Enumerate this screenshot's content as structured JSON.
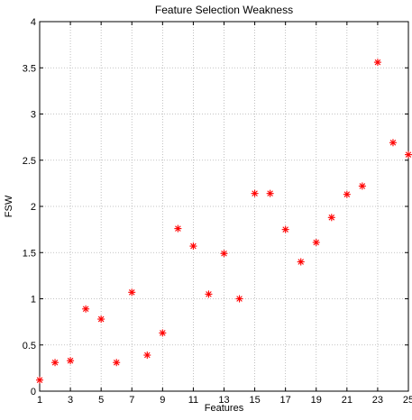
{
  "chart_data": {
    "type": "scatter",
    "title": "Feature Selection Weakness",
    "xlabel": "Features",
    "ylabel": "FSW",
    "xlim": [
      1,
      25
    ],
    "ylim": [
      0,
      4
    ],
    "x_ticks": [
      1,
      3,
      5,
      7,
      9,
      11,
      13,
      15,
      17,
      19,
      21,
      23,
      25
    ],
    "y_ticks": [
      0,
      0.5,
      1,
      1.5,
      2,
      2.5,
      3,
      3.5,
      4
    ],
    "grid": true,
    "marker": "asterisk",
    "marker_color": "#ff0000",
    "series": [
      {
        "x": [
          1,
          2,
          3,
          4,
          5,
          6,
          7,
          8,
          9,
          10,
          11,
          12,
          13,
          14,
          15,
          16,
          17,
          18,
          19,
          20,
          21,
          22,
          23,
          24,
          25
        ],
        "y": [
          0.12,
          0.31,
          0.33,
          0.89,
          0.78,
          0.31,
          1.07,
          0.39,
          0.63,
          1.76,
          1.57,
          1.05,
          1.49,
          1.0,
          2.14,
          2.14,
          1.75,
          1.4,
          1.61,
          1.88,
          2.13,
          2.22,
          3.56,
          2.69,
          2.56
        ]
      }
    ]
  }
}
